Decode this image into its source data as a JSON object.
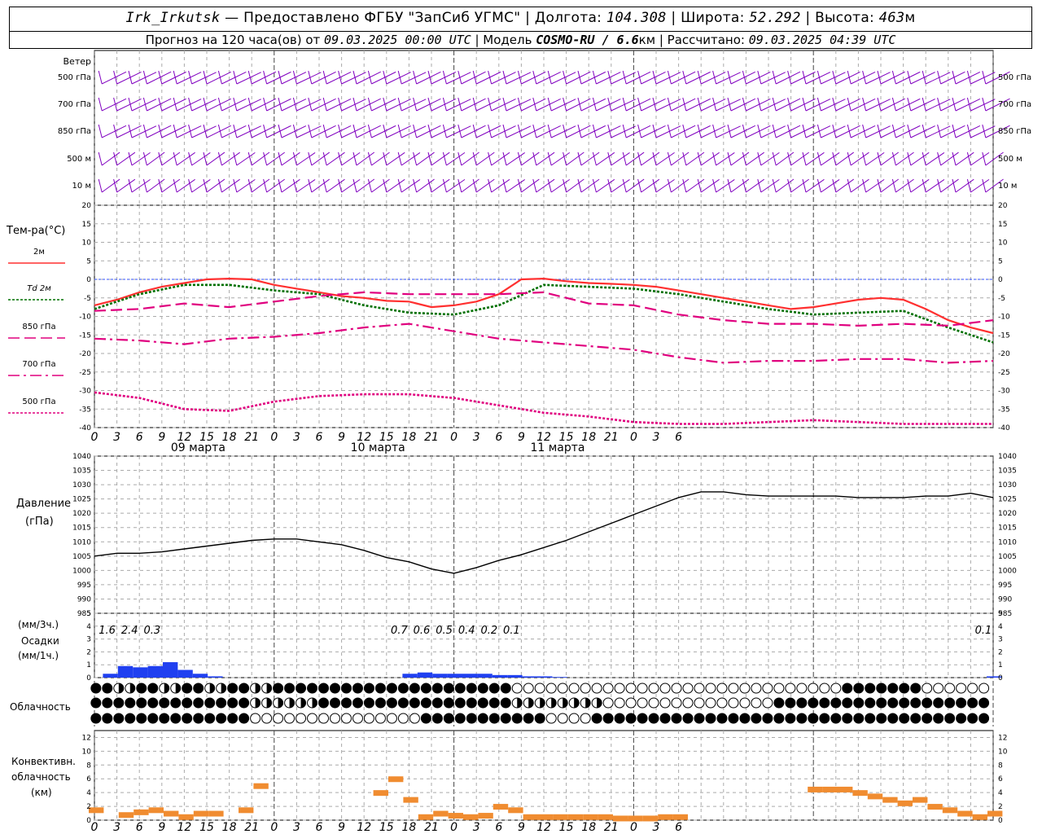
{
  "header": {
    "station": "Irk_Irkutsk",
    "provider": "Предоставлено ФГБУ \"ЗапСиб УГМС\"",
    "lon_label": "Долгота:",
    "lon": "104.308",
    "lat_label": "Широта:",
    "lat": "52.292",
    "alt_label": "Высота:",
    "alt": "463",
    "alt_unit": "м",
    "forecast_prefix": "Прогноз на 120 часа(ов) от",
    "forecast_start": "09.03.2025 00:00 UTC",
    "model_label": "Модель",
    "model": "COSMO-RU / 6.6",
    "model_unit": "км",
    "calc_label": "Рассчитано:",
    "calc_time": "09.03.2025 04:39 UTC"
  },
  "wind_panel": {
    "title": "Ветер",
    "levels": [
      "500 гПа",
      "700 гПа",
      "850 гПа",
      "500 м",
      "10  м"
    ],
    "color": "#8000c0"
  },
  "temp_panel": {
    "title": "Тем-ра(°C)",
    "legend": [
      {
        "label": "2м",
        "color": "#ff3030",
        "style": "solid"
      },
      {
        "label_prefix": "Td",
        "label": "2м",
        "color": "#007000",
        "style": "dotted"
      },
      {
        "label": "850 гПа",
        "color": "#e0007f",
        "style": "dashed"
      },
      {
        "label": "700 гПа",
        "color": "#e0007f",
        "style": "dashdot"
      },
      {
        "label": "500 гПа",
        "color": "#e0007f",
        "style": "dotted"
      }
    ],
    "yticks": [
      "20",
      "15",
      "10",
      "5",
      "0",
      "-5",
      "-10",
      "-15",
      "-20",
      "-25",
      "-30",
      "-35",
      "-40"
    ]
  },
  "pressure_panel": {
    "title": "Давление",
    "unit": "(гПа)",
    "yticks": [
      "1040",
      "1035",
      "1030",
      "1025",
      "1020",
      "1015",
      "1010",
      "1005",
      "1000",
      "995",
      "990",
      "985"
    ]
  },
  "precip_panel": {
    "unit_top": "(мм/3ч.)",
    "title": "Осадки",
    "unit_bottom": "(мм/1ч.)",
    "yticks": [
      "5",
      "4",
      "3",
      "2",
      "1",
      "0"
    ],
    "totals": [
      {
        "hour": 3,
        "text": "1.6"
      },
      {
        "hour": 6,
        "text": "2.4"
      },
      {
        "hour": 9,
        "text": "0.3"
      },
      {
        "hour": 42,
        "text": "0.7"
      },
      {
        "hour": 45,
        "text": "0.6"
      },
      {
        "hour": 48,
        "text": "0.5"
      },
      {
        "hour": 51,
        "text": "0.4"
      },
      {
        "hour": 54,
        "text": "0.2"
      },
      {
        "hour": 57,
        "text": "0.1"
      },
      {
        "hour": 120,
        "text": "0.1"
      }
    ]
  },
  "cloud_panel": {
    "title": "Облачность"
  },
  "conv_panel": {
    "title_1": "Конвективн.",
    "title_2": "облачность",
    "unit": "(км)",
    "yticks": [
      "12",
      "10",
      "8",
      "6",
      "4",
      "2",
      "0"
    ],
    "color": "#f08c30"
  },
  "x_axis": {
    "hour_labels": [
      "0",
      "3",
      "6",
      "9",
      "12",
      "15",
      "18",
      "21",
      "0",
      "3",
      "6",
      "9",
      "12",
      "15",
      "18",
      "21",
      "0",
      "3",
      "6",
      "9",
      "12",
      "15",
      "18",
      "21",
      "0",
      "3",
      "6"
    ],
    "date_labels": [
      "09 марта",
      "10 марта",
      "11 марта"
    ]
  },
  "chart_data": {
    "type": "line",
    "x_unit": "hours since 09.03.2025 00:00 UTC",
    "series": [
      {
        "name": "2м",
        "x": [
          0,
          3,
          6,
          9,
          12,
          15,
          18,
          21,
          24,
          27,
          30,
          33,
          36,
          39,
          42,
          45,
          48,
          51,
          54,
          57,
          60,
          63,
          66,
          69,
          72,
          75,
          78,
          81,
          84,
          87,
          90,
          93,
          96,
          99,
          102,
          105,
          108,
          111,
          114,
          117,
          120
        ],
        "values": [
          -7,
          -5.5,
          -3.5,
          -2,
          -1,
          0,
          0.2,
          0,
          -1.5,
          -2.5,
          -3.5,
          -4.5,
          -5,
          -5.8,
          -6,
          -7.5,
          -7,
          -6,
          -4,
          0,
          0.2,
          -0.5,
          -1,
          -1.2,
          -1.5,
          -2,
          -3,
          -4,
          -5,
          -6,
          -7,
          -8,
          -7.5,
          -6.5,
          -5.5,
          -5,
          -5.5,
          -8,
          -11,
          -13,
          -14.5
        ]
      },
      {
        "name": "Td 2м",
        "x": [
          0,
          6,
          12,
          18,
          24,
          30,
          36,
          42,
          48,
          54,
          60,
          66,
          72,
          78,
          84,
          90,
          96,
          102,
          108,
          114,
          120
        ],
        "values": [
          -8,
          -4,
          -1.5,
          -1.5,
          -3,
          -4,
          -7,
          -9,
          -9.5,
          -7,
          -1.5,
          -2,
          -2.5,
          -4,
          -6,
          -8,
          -9.5,
          -9,
          -8.5,
          -13,
          -17
        ]
      },
      {
        "name": "850 гПа",
        "x": [
          0,
          6,
          12,
          18,
          24,
          30,
          36,
          42,
          48,
          54,
          60,
          66,
          72,
          78,
          84,
          90,
          96,
          102,
          108,
          114,
          120
        ],
        "values": [
          -8.5,
          -8,
          -6.5,
          -7.5,
          -6,
          -4.5,
          -3.5,
          -4,
          -4,
          -4,
          -3.5,
          -6.5,
          -7,
          -9.5,
          -11,
          -12,
          -12,
          -12.5,
          -12,
          -12.5,
          -11
        ]
      },
      {
        "name": "700 гПа",
        "x": [
          0,
          6,
          12,
          18,
          24,
          30,
          36,
          42,
          48,
          54,
          60,
          66,
          72,
          78,
          84,
          90,
          96,
          102,
          108,
          114,
          120
        ],
        "values": [
          -16,
          -16.5,
          -17.5,
          -16,
          -15.5,
          -14.5,
          -13,
          -12,
          -14,
          -16,
          -17,
          -18,
          -19,
          -21,
          -22.5,
          -22,
          -22,
          -21.5,
          -21.5,
          -22.5,
          -22
        ]
      },
      {
        "name": "500 гПа",
        "x": [
          0,
          6,
          12,
          18,
          24,
          30,
          36,
          42,
          48,
          54,
          60,
          66,
          72,
          78,
          84,
          90,
          96,
          102,
          108,
          114,
          120
        ],
        "values": [
          -30.5,
          -32,
          -35,
          -35.5,
          -33,
          -31.5,
          -31,
          -31,
          -32,
          -34,
          -36,
          -37,
          -38.5,
          -39,
          -39,
          -38.5,
          -38,
          -38.5,
          -39,
          -39,
          -39
        ]
      },
      {
        "name": "Давление",
        "x": [
          0,
          3,
          6,
          9,
          12,
          15,
          18,
          21,
          24,
          27,
          30,
          33,
          36,
          39,
          42,
          45,
          48,
          51,
          54,
          57,
          60,
          63,
          66,
          69,
          72,
          75,
          78,
          81,
          84,
          87,
          90,
          93,
          96,
          99,
          102,
          105,
          108,
          111,
          114,
          117,
          120
        ],
        "values": [
          1005,
          1006,
          1006,
          1006.5,
          1007.5,
          1008.5,
          1009.5,
          1010.5,
          1011,
          1011,
          1010,
          1009,
          1007,
          1004.5,
          1003,
          1000.5,
          999,
          1001,
          1003.5,
          1005.5,
          1008,
          1010.5,
          1013.5,
          1016.5,
          1019.5,
          1022.5,
          1025.5,
          1027.5,
          1027.5,
          1026.5,
          1026,
          1026,
          1026,
          1026,
          1025.5,
          1025.5,
          1025.5,
          1026,
          1026,
          1027,
          1025.5
        ]
      }
    ],
    "precip_1h": {
      "x": [
        2,
        4,
        6,
        8,
        10,
        12,
        14,
        16,
        18,
        20,
        22,
        24,
        26,
        28,
        30,
        32,
        34,
        36,
        38,
        40,
        42,
        44,
        46,
        48,
        50,
        52,
        54,
        56,
        58,
        60,
        62,
        64,
        66,
        68,
        70,
        72,
        118,
        120
      ],
      "values": [
        0.3,
        0.9,
        0.8,
        0.9,
        1.2,
        0.6,
        0.3,
        0.1,
        0,
        0,
        0,
        0,
        0,
        0,
        0,
        0,
        0,
        0,
        0,
        0,
        0.3,
        0.4,
        0.3,
        0.3,
        0.3,
        0.3,
        0.2,
        0.2,
        0.1,
        0.1,
        0.05,
        0,
        0,
        0,
        0,
        0,
        0,
        0.1
      ]
    },
    "conv_km": {
      "x": [
        0,
        4,
        6,
        8,
        10,
        12,
        14,
        16,
        18,
        20,
        22,
        24,
        26,
        28,
        30,
        32,
        34,
        36,
        38,
        40,
        42,
        44,
        46,
        48,
        50,
        52,
        54,
        56,
        58,
        60,
        62,
        64,
        66,
        68,
        70,
        72,
        74,
        76,
        78,
        80,
        82,
        84,
        86,
        88,
        90,
        92,
        94,
        96,
        98,
        100,
        102,
        104,
        106,
        108,
        110,
        112,
        114,
        116,
        118,
        120
      ],
      "values": [
        1.5,
        0.8,
        1.2,
        1.5,
        1,
        0.5,
        1,
        1,
        0,
        1.5,
        5,
        0,
        0,
        0,
        0,
        0,
        0,
        0,
        4,
        6,
        3,
        0.5,
        1,
        0.7,
        0.5,
        0.7,
        2,
        1.5,
        0.5,
        0.5,
        0.5,
        0.5,
        0.5,
        0.5,
        0.3,
        0.3,
        0.3,
        0.5,
        0.5,
        0,
        0,
        0,
        0,
        0,
        0,
        0,
        0,
        4.5,
        4.5,
        4.5,
        4,
        3.5,
        3,
        2.5,
        3,
        2,
        1.5,
        1,
        0.5,
        1
      ]
    },
    "ylim_temp": [
      -40,
      20
    ],
    "ylim_pressure": [
      985,
      1040
    ],
    "ylim_precip": [
      0,
      5
    ],
    "ylim_conv": [
      0,
      13
    ],
    "grid": true
  }
}
